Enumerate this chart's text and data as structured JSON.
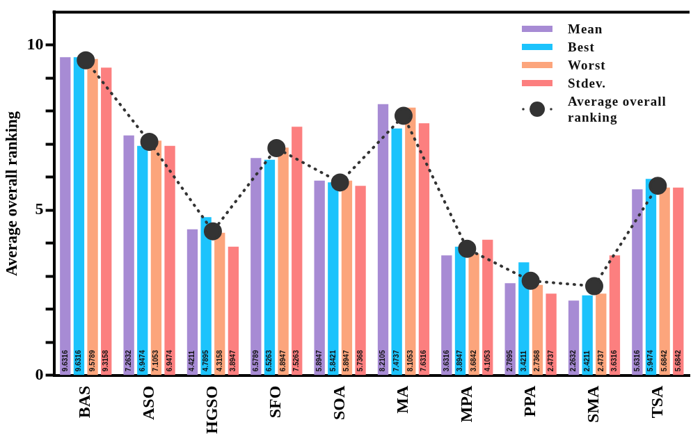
{
  "chart_data": {
    "type": "bar",
    "ylabel": "Average overall ranking",
    "categories": [
      "BAS",
      "ASO",
      "HGSO",
      "SFO",
      "SOA",
      "MA",
      "MPA",
      "PPA",
      "SMA",
      "TSA"
    ],
    "series": [
      {
        "name": "Mean",
        "color": "#a78bd4",
        "values": [
          9.6316,
          7.2632,
          4.4211,
          6.5789,
          5.8947,
          8.2105,
          3.6316,
          2.7895,
          2.2632,
          5.6316
        ],
        "value_labels": [
          "9.6316",
          "7.2632",
          "4.4211",
          "6.5789",
          "5.8947",
          "8.2105",
          "3.6316",
          "2.7895",
          "2.2632",
          "5.6316"
        ]
      },
      {
        "name": "Best",
        "color": "#1cc3fc",
        "values": [
          9.6316,
          6.9474,
          4.7895,
          6.5263,
          5.8421,
          7.4737,
          3.8947,
          3.4211,
          2.4211,
          5.9474
        ],
        "value_labels": [
          "9.6316",
          "6.9474",
          "4.7895",
          "6.5263",
          "5.8421",
          "7.4737",
          "3.8947",
          "3.4211",
          "2.4211",
          "5.9474"
        ]
      },
      {
        "name": "Worst",
        "color": "#fca57c",
        "values": [
          9.5789,
          7.1053,
          4.3158,
          6.8947,
          5.8947,
          8.1053,
          3.6842,
          2.7368,
          2.4737,
          5.6842
        ],
        "value_labels": [
          "9.5789",
          "7.1053",
          "4.3158",
          "6.8947",
          "5.8947",
          "8.1053",
          "3.6842",
          "2.7368",
          "2.4737",
          "5.6842"
        ]
      },
      {
        "name": "Stdev.",
        "color": "#fc7f7f",
        "values": [
          9.3158,
          6.9474,
          3.8947,
          7.5263,
          5.7368,
          7.6316,
          4.1053,
          2.4737,
          3.6316,
          5.6842
        ],
        "value_labels": [
          "9.3158",
          "6.9474",
          "3.8947",
          "7.5263",
          "5.7368",
          "7.6316",
          "4.1053",
          "2.4737",
          "3.6316",
          "5.6842"
        ]
      },
      {
        "name": "Average overall ranking",
        "type": "line",
        "color": "#333333",
        "marker": "circle",
        "line_style": "dotted",
        "values": [
          9.54,
          7.07,
          4.36,
          6.88,
          5.84,
          7.86,
          3.83,
          2.86,
          2.7,
          5.74
        ]
      }
    ],
    "ylim": [
      0,
      11
    ],
    "yticks": [
      0,
      {
        "value": 1,
        "label": null
      },
      {
        "value": 2,
        "label": null
      },
      {
        "value": 3,
        "label": null
      },
      {
        "value": 4,
        "label": null
      },
      5,
      {
        "value": 6,
        "label": null
      },
      {
        "value": 7,
        "label": null
      },
      {
        "value": 8,
        "label": null
      },
      {
        "value": 9,
        "label": null
      },
      10
    ],
    "grid": false,
    "legend": "top right"
  }
}
